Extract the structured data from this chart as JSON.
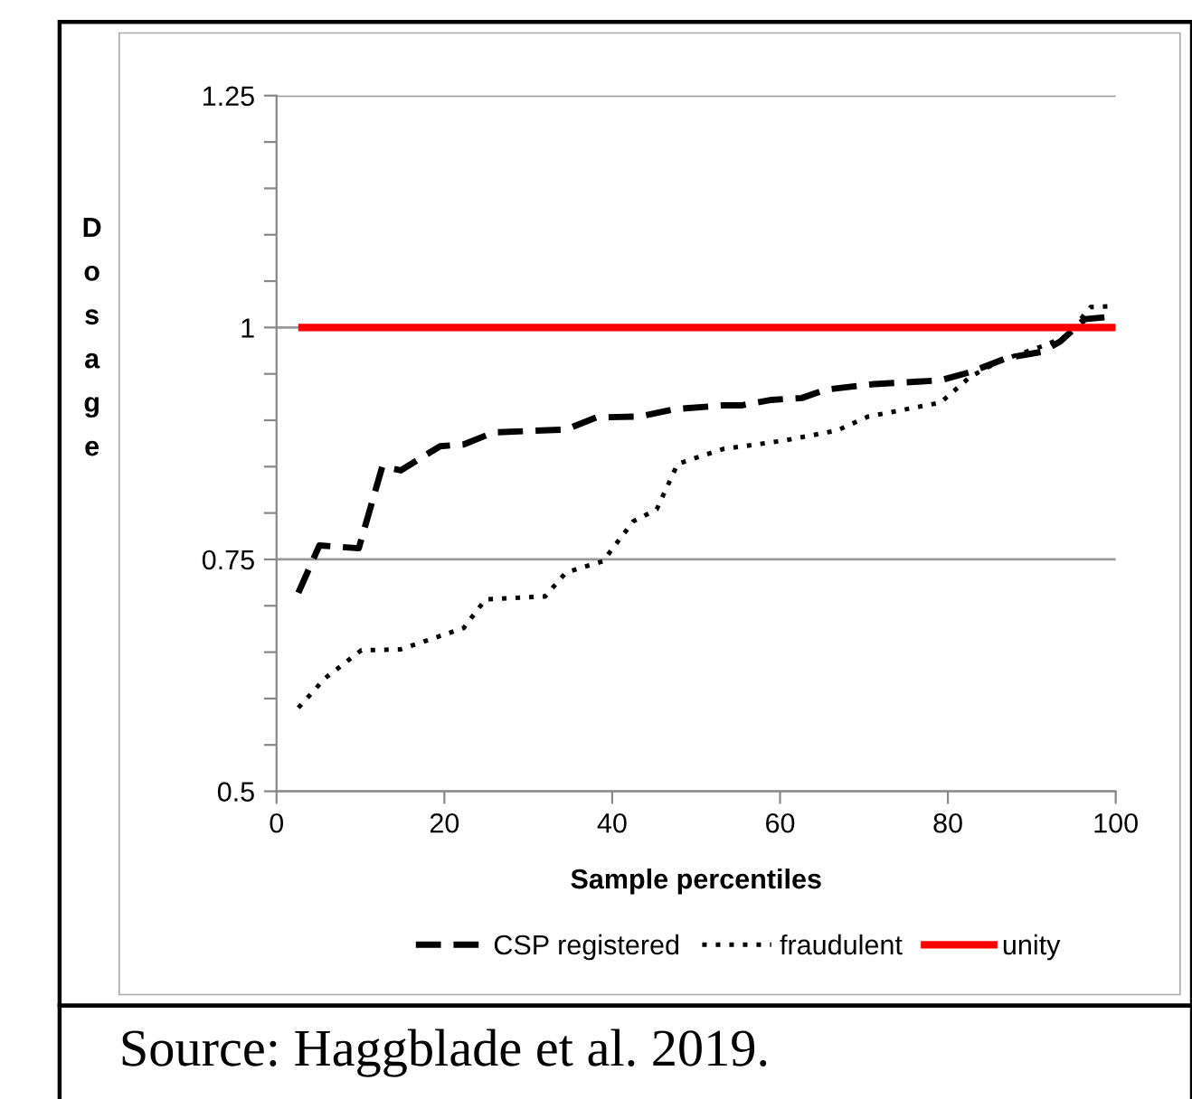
{
  "chart_data": {
    "type": "line",
    "xlabel": "Sample percentiles",
    "ylabel": "Dosage",
    "xlim": [
      0,
      100
    ],
    "xticks": [
      0,
      20,
      40,
      60,
      80,
      100
    ],
    "ylim": [
      0.5,
      1.25
    ],
    "yticks": [
      0.5,
      {
        "value": 0.55,
        "label": null
      },
      {
        "value": 0.6,
        "label": null
      },
      {
        "value": 0.65,
        "label": null
      },
      {
        "value": 0.7,
        "label": null
      },
      0.75,
      {
        "value": 0.8,
        "label": null
      },
      {
        "value": 0.85,
        "label": null
      },
      {
        "value": 0.9,
        "label": null
      },
      {
        "value": 0.95,
        "label": null
      },
      1,
      {
        "value": 1.05,
        "label": null
      },
      {
        "value": 1.1,
        "label": null
      },
      {
        "value": 1.15,
        "label": null
      },
      {
        "value": 1.2,
        "label": null
      },
      1.25
    ],
    "grid": "y",
    "legend": "bottom",
    "series": [
      {
        "name": "CSP registered",
        "color": "#000000",
        "line_style": "dashed",
        "x": [
          2.6,
          5.1,
          9.8,
          12.6,
          14.8,
          19.5,
          22.3,
          25.9,
          34.5,
          38.1,
          43.2,
          47.5,
          53.2,
          55.4,
          59,
          62.6,
          65.4,
          71.2,
          79.1,
          82.7,
          87,
          91.3,
          93.4,
          96.3,
          99.9
        ],
        "values": [
          0.714,
          0.765,
          0.762,
          0.85,
          0.846,
          0.872,
          0.874,
          0.887,
          0.89,
          0.903,
          0.904,
          0.912,
          0.916,
          0.916,
          0.922,
          0.924,
          0.933,
          0.939,
          0.943,
          0.952,
          0.967,
          0.974,
          0.985,
          1.009,
          1.012
        ]
      },
      {
        "name": "fraudulent",
        "color": "#000000",
        "line_style": "dotted",
        "x": [
          2.6,
          5.8,
          10.1,
          14.8,
          22.3,
          24.9,
          32,
          34.5,
          38.9,
          42.5,
          45.3,
          47.8,
          53.2,
          60.4,
          66.8,
          70.5,
          79.1,
          82.7,
          86.2,
          91.3,
          94.2,
          97,
          99.9
        ],
        "values": [
          0.59,
          0.622,
          0.652,
          0.653,
          0.676,
          0.707,
          0.71,
          0.736,
          0.748,
          0.791,
          0.804,
          0.853,
          0.869,
          0.878,
          0.889,
          0.904,
          0.919,
          0.947,
          0.964,
          0.98,
          0.991,
          1.022,
          1.023
        ]
      },
      {
        "name": "unity",
        "color": "#ff0000",
        "line_style": "solid",
        "x": [
          2.6,
          100
        ],
        "values": [
          1,
          1
        ]
      }
    ],
    "annotations": [
      "Source: Haggblade et al. 2019."
    ]
  }
}
